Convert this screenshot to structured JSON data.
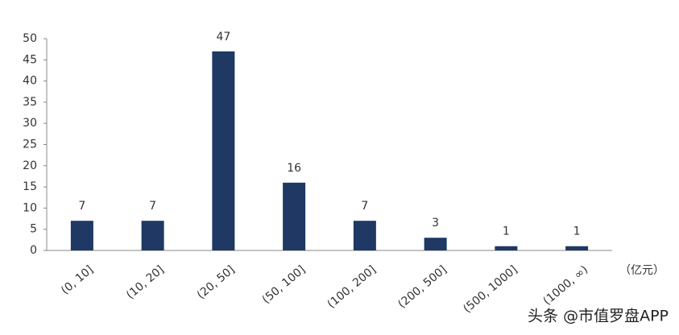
{
  "chart_data": {
    "type": "bar",
    "categories": [
      "(0, 10]",
      "(10, 20]",
      "(20, 50]",
      "(50, 100]",
      "(100, 200]",
      "(200, 500]",
      "(500, 1000]",
      "(1000, ∞)"
    ],
    "values": [
      7,
      7,
      47,
      16,
      7,
      3,
      1,
      1
    ],
    "color": "#1f3864",
    "ylim": [
      0,
      50
    ],
    "yticks": [
      0,
      5,
      10,
      15,
      20,
      25,
      30,
      35,
      40,
      45,
      50
    ],
    "x_label": "（亿元）",
    "grid": false
  },
  "watermark": "头条 @市值罗盘APP"
}
